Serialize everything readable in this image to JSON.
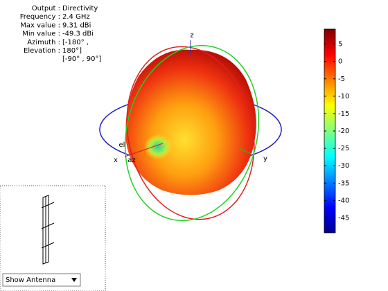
{
  "info": [
    {
      "label": "Output :",
      "value": "Directivity"
    },
    {
      "label": "Frequency :",
      "value": "2.4 GHz"
    },
    {
      "label": "Max value :",
      "value": "9.31 dBi"
    },
    {
      "label": "Min value :",
      "value": "-49.3 dBi"
    },
    {
      "label": "Azimuth :",
      "value": "[-180° ,"
    },
    {
      "label": "Elevation :",
      "value": "180°]"
    }
  ],
  "info_extra": "[-90° , 90°]",
  "axes": {
    "x": "x",
    "y": "y",
    "z": "z",
    "el": "el",
    "az": "az"
  },
  "colorbar": {
    "clim": [
      -49.3,
      9.31
    ],
    "ticks": [
      5,
      0,
      -5,
      -10,
      -15,
      -20,
      -25,
      -30,
      -35,
      -40,
      -45
    ]
  },
  "dropdown": "Show Antenna"
}
